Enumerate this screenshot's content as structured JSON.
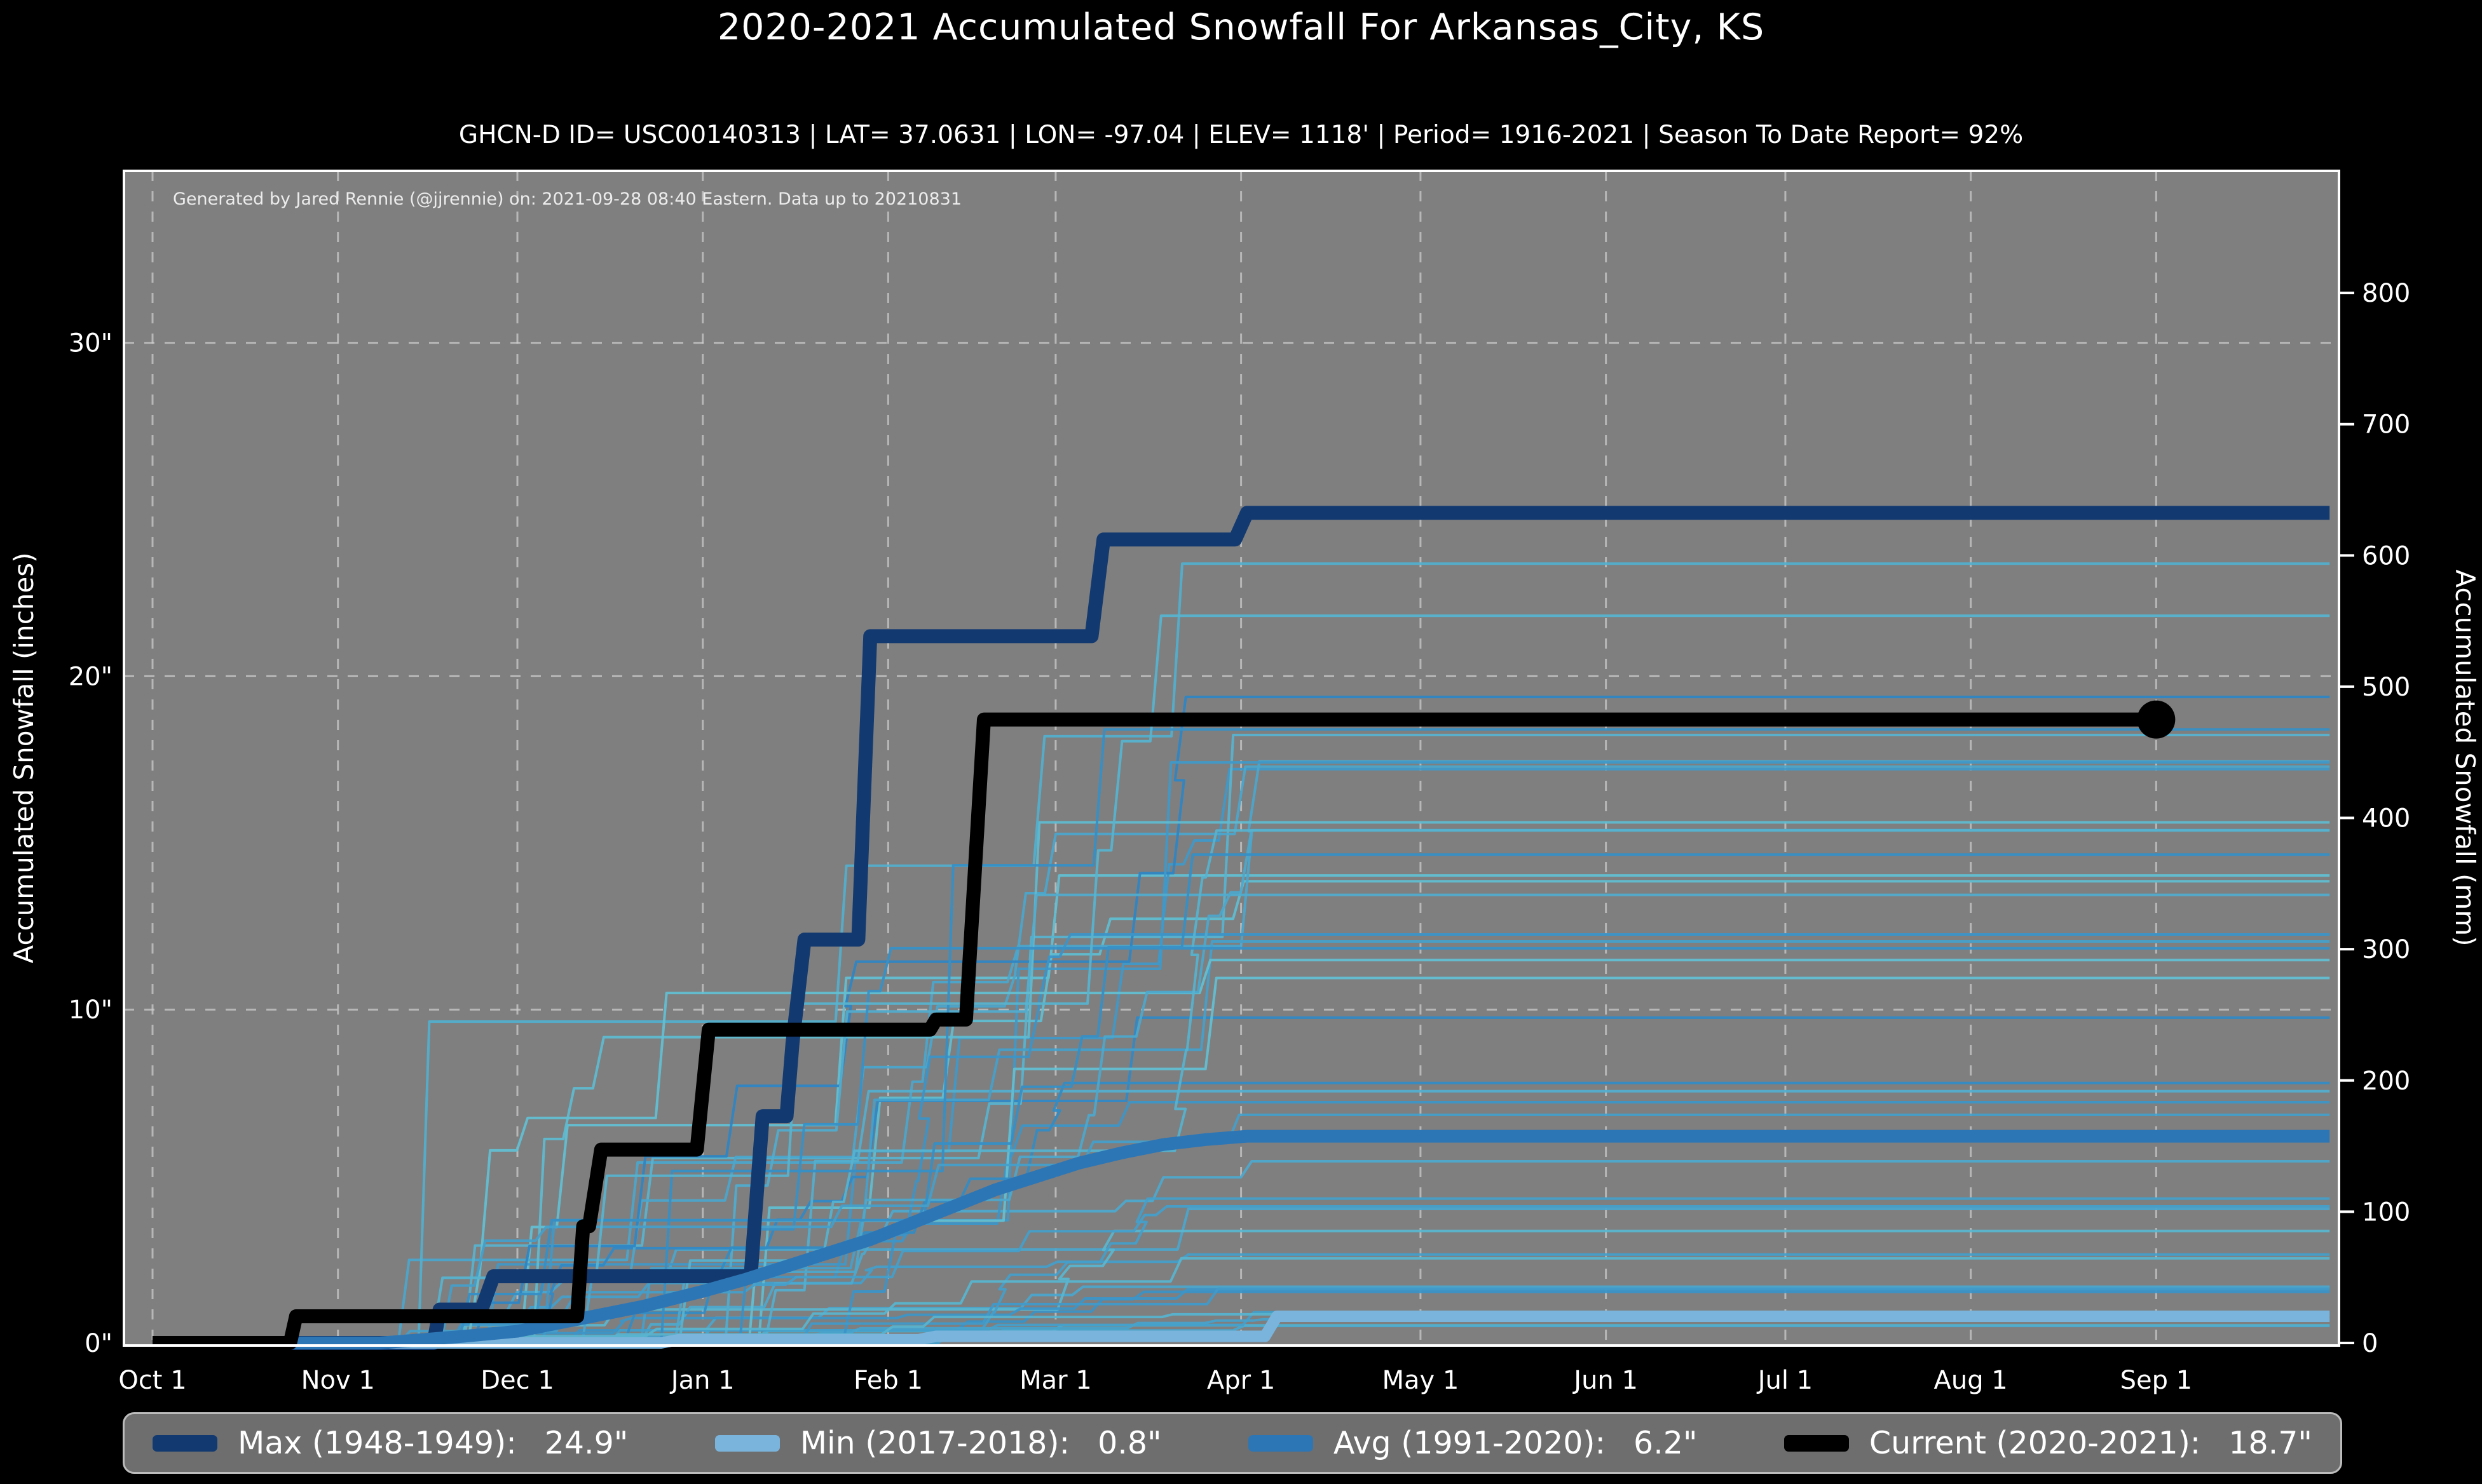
{
  "header": {
    "title": "2020-2021 Accumulated Snowfall For Arkansas_City, KS",
    "subtitle": "GHCN-D ID= USC00140313 | LAT= 37.0631 | LON= -97.04 | ELEV= 1118' | Period= 1916-2021 | Season To Date Report= 92%"
  },
  "watermark": "Generated by Jared Rennie (@jjrennie) on: 2021-09-28 08:40 Eastern. Data up to 20210831",
  "axes": {
    "left_label": "Accumulated Snowfall (inches)",
    "right_label": "Accumulated Snowfall (mm)"
  },
  "legend": {
    "items": [
      {
        "label": "Max (1948-1949):",
        "value": "24.9\"",
        "color": "#133a70"
      },
      {
        "label": "Min (2017-2018):",
        "value": "0.8\"",
        "color": "#7ab4dc"
      },
      {
        "label": "Avg (1991-2020):",
        "value": "6.2\"",
        "color": "#2d76b5"
      },
      {
        "label": "Current (2020-2021):",
        "value": "18.7\"",
        "color": "#000000"
      }
    ]
  },
  "chart_data": {
    "type": "line",
    "title": "2020-2021 Accumulated Snowfall For Arkansas_City, KS",
    "xlabel": "",
    "ylabel_left": "Accumulated Snowfall (inches)",
    "ylabel_right": "Accumulated Snowfall (mm)",
    "x_axis": {
      "unit": "days since Oct 1",
      "domain_days": [
        0,
        364
      ],
      "tick_labels": [
        "Oct 1",
        "Nov 1",
        "Dec 1",
        "Jan 1",
        "Feb 1",
        "Mar 1",
        "Apr 1",
        "May 1",
        "Jun 1",
        "Jul 1",
        "Aug 1",
        "Sep 1"
      ],
      "tick_days": [
        0,
        31,
        61,
        92,
        123,
        151,
        182,
        212,
        243,
        273,
        304,
        335
      ]
    },
    "y_left": {
      "tick_values": [
        0,
        10,
        20,
        30
      ],
      "tick_labels": [
        "0\"",
        "10\"",
        "20\"",
        "30\""
      ],
      "range_inches": [
        0,
        35.2
      ]
    },
    "y_right": {
      "tick_values": [
        0,
        100,
        200,
        300,
        400,
        500,
        600,
        700,
        800
      ],
      "unit": "mm"
    },
    "grid": {
      "show": true,
      "style": "dashed",
      "vertical_at": "month ticks",
      "horizontal_at": [
        10,
        20,
        30
      ]
    },
    "style": {
      "fig_bg": "#000000",
      "plot_bg": "#7f7f7f",
      "spine_color": "#ffffff",
      "grid_color": "#cfcfcf"
    },
    "series": [
      {
        "name": "Max (1948-1949)",
        "total_inches": 24.9,
        "color": "#133a70",
        "width": 22,
        "points": [
          [
            0,
            0
          ],
          [
            47,
            0
          ],
          [
            48,
            1.0
          ],
          [
            55,
            1.0
          ],
          [
            57,
            2.0
          ],
          [
            100,
            2.0
          ],
          [
            102,
            6.8
          ],
          [
            106,
            6.8
          ],
          [
            107,
            9.0
          ],
          [
            109,
            12.1
          ],
          [
            118,
            12.1
          ],
          [
            120,
            21.2
          ],
          [
            157,
            21.2
          ],
          [
            159,
            24.1
          ],
          [
            181,
            24.1
          ],
          [
            183,
            24.9
          ],
          [
            364,
            24.9
          ]
        ]
      },
      {
        "name": "Min (2017-2018)",
        "total_inches": 0.8,
        "color": "#7ab4dc",
        "width": 18,
        "points": [
          [
            0,
            0
          ],
          [
            85,
            0
          ],
          [
            88,
            0.1
          ],
          [
            128,
            0.1
          ],
          [
            131,
            0.2
          ],
          [
            186,
            0.2
          ],
          [
            188,
            0.8
          ],
          [
            364,
            0.8
          ]
        ]
      },
      {
        "name": "Avg (1991-2020)",
        "total_inches": 6.2,
        "color": "#2d76b5",
        "width": 20,
        "points": [
          [
            0,
            0
          ],
          [
            38,
            0
          ],
          [
            45,
            0.1
          ],
          [
            52,
            0.2
          ],
          [
            61,
            0.35
          ],
          [
            68,
            0.6
          ],
          [
            75,
            0.85
          ],
          [
            82,
            1.1
          ],
          [
            92,
            1.55
          ],
          [
            99,
            1.9
          ],
          [
            106,
            2.3
          ],
          [
            113,
            2.7
          ],
          [
            120,
            3.1
          ],
          [
            127,
            3.6
          ],
          [
            134,
            4.1
          ],
          [
            141,
            4.6
          ],
          [
            148,
            5.0
          ],
          [
            155,
            5.4
          ],
          [
            162,
            5.7
          ],
          [
            169,
            5.95
          ],
          [
            176,
            6.1
          ],
          [
            183,
            6.2
          ],
          [
            364,
            6.2
          ]
        ]
      },
      {
        "name": "Current (2020-2021)",
        "total_inches": 18.7,
        "color": "#000000",
        "width": 22,
        "end_dot": true,
        "end_dot_radius": 30,
        "points": [
          [
            0,
            0
          ],
          [
            23,
            0
          ],
          [
            24,
            0.8
          ],
          [
            71,
            0.8
          ],
          [
            72,
            3.5
          ],
          [
            73,
            3.5
          ],
          [
            75,
            5.8
          ],
          [
            91,
            5.8
          ],
          [
            93,
            9.4
          ],
          [
            130,
            9.4
          ],
          [
            131,
            9.7
          ],
          [
            136,
            9.7
          ],
          [
            139,
            18.7
          ],
          [
            335,
            18.7
          ]
        ]
      }
    ],
    "background_series": {
      "description": "thin historical season lines, 1916-2021 (unlabeled in figure, procedurally approximated)",
      "count": 42,
      "seed": 7,
      "day_min": 40,
      "day_max": 185,
      "final_min": 0.5,
      "final_max": 23.6,
      "colors": [
        "#2e86c4",
        "#63c0d2"
      ],
      "width": 4,
      "opacity": 0.95
    }
  }
}
